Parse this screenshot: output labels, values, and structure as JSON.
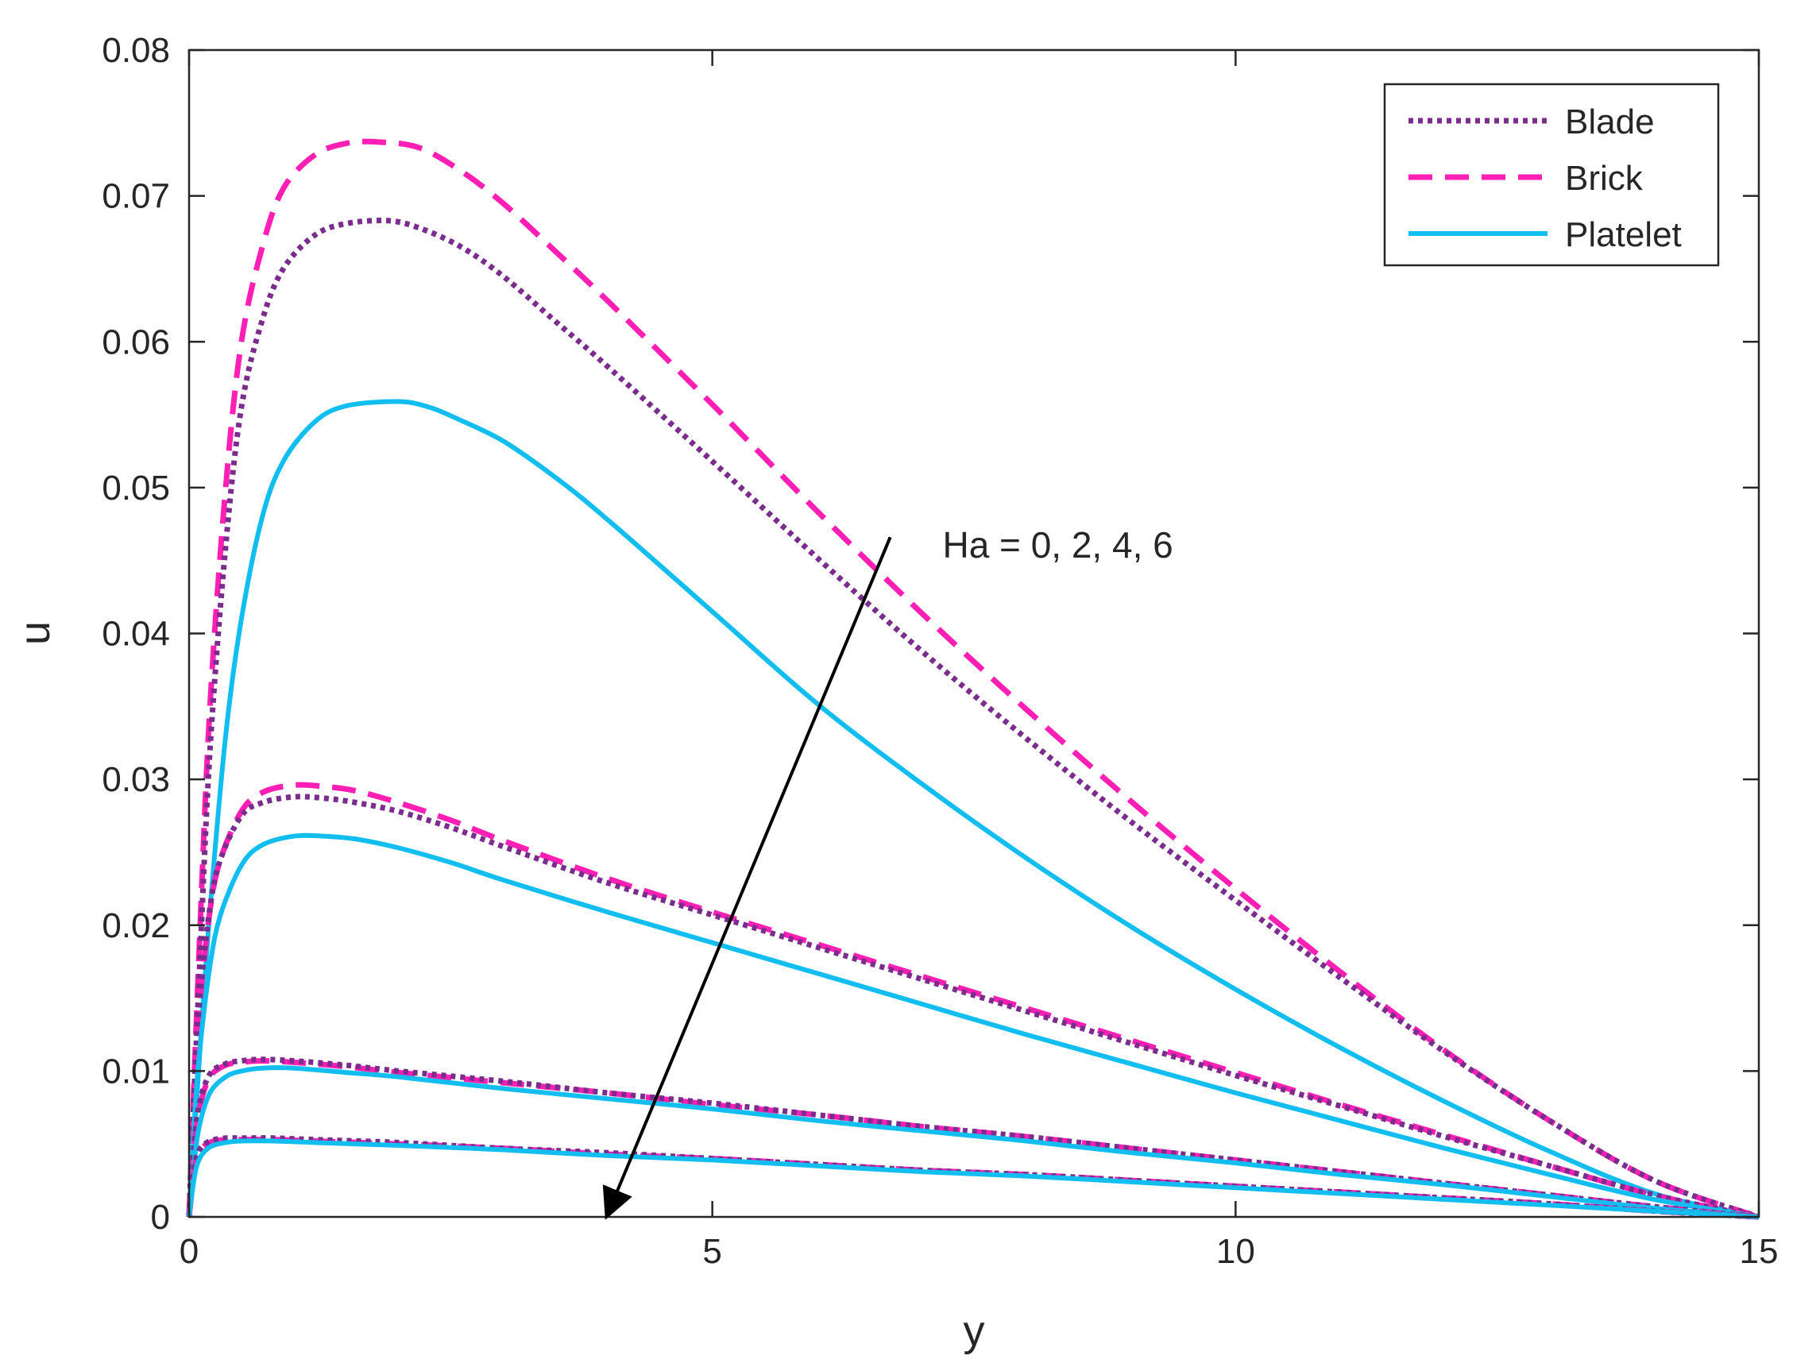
{
  "chart_data": {
    "type": "line",
    "title": "",
    "xlabel": "y",
    "ylabel": "u",
    "xlim": [
      0,
      15
    ],
    "ylim": [
      0,
      0.08
    ],
    "xticks": [
      0,
      5,
      10,
      15
    ],
    "xtick_labels": [
      "0",
      "5",
      "10",
      "15"
    ],
    "yticks": [
      0,
      0.01,
      0.02,
      0.03,
      0.04,
      0.05,
      0.06,
      0.07,
      0.08
    ],
    "ytick_labels": [
      "0",
      "0.01",
      "0.02",
      "0.03",
      "0.04",
      "0.05",
      "0.06",
      "0.07",
      "0.08"
    ],
    "grid": false,
    "legend": {
      "position": "top-right",
      "entries": [
        {
          "name": "Blade",
          "color": "#7B2D8E",
          "style": "dotted"
        },
        {
          "name": "Brick",
          "color": "#FF1FB4",
          "style": "dashed"
        },
        {
          "name": "Platelet",
          "color": "#12BDEF",
          "style": "solid"
        }
      ]
    },
    "annotation": {
      "text": "Ha = 0, 2, 4, 6",
      "arrow_from": [
        6.7,
        0.0466
      ],
      "arrow_to": [
        4.0,
        0.0002
      ]
    },
    "series": [
      {
        "name": "Brick",
        "group": "Ha = 0",
        "color": "#FF1FB4",
        "style": "dashed",
        "peak_x": 1.8,
        "peak_y": 0.0737,
        "x": [
          0,
          0.1,
          0.2,
          0.35,
          0.5,
          0.7,
          0.9,
          1.2,
          1.5,
          1.8,
          2.2,
          2.6,
          3,
          3.5,
          4,
          5,
          6,
          7,
          8,
          9,
          10,
          11,
          12,
          13,
          14,
          15
        ],
        "y": [
          0,
          0.019,
          0.035,
          0.05,
          0.06,
          0.0665,
          0.0705,
          0.0728,
          0.0736,
          0.0737,
          0.0733,
          0.0717,
          0.0695,
          0.0662,
          0.0628,
          0.0557,
          0.0484,
          0.0414,
          0.0348,
          0.0285,
          0.0225,
          0.0168,
          0.0114,
          0.0066,
          0.0025,
          0
        ]
      },
      {
        "name": "Blade",
        "group": "Ha = 0",
        "color": "#7B2D8E",
        "style": "dotted",
        "peak_x": 1.9,
        "peak_y": 0.0683,
        "x": [
          0,
          0.1,
          0.2,
          0.35,
          0.5,
          0.7,
          0.9,
          1.2,
          1.5,
          1.9,
          2.2,
          2.6,
          3,
          3.5,
          4,
          5,
          6,
          7,
          8,
          9,
          10,
          11,
          12,
          13,
          14,
          15
        ],
        "y": [
          0,
          0.017,
          0.032,
          0.046,
          0.0555,
          0.0615,
          0.065,
          0.0673,
          0.0681,
          0.0683,
          0.0678,
          0.0665,
          0.0645,
          0.0614,
          0.0583,
          0.0518,
          0.0452,
          0.0388,
          0.0328,
          0.0271,
          0.0217,
          0.0164,
          0.0113,
          0.0066,
          0.0025,
          0
        ]
      },
      {
        "name": "Platelet",
        "group": "Ha = 0",
        "color": "#12BDEF",
        "style": "solid",
        "peak_x": 2.0,
        "peak_y": 0.0559,
        "x": [
          0,
          0.1,
          0.2,
          0.35,
          0.5,
          0.7,
          0.9,
          1.2,
          1.5,
          2.0,
          2.3,
          2.6,
          3,
          3.5,
          4,
          5,
          6,
          7,
          8,
          9,
          10,
          11,
          12,
          13,
          14,
          15
        ],
        "y": [
          0,
          0.011,
          0.021,
          0.033,
          0.041,
          0.048,
          0.0518,
          0.0545,
          0.0556,
          0.0559,
          0.0555,
          0.0546,
          0.0532,
          0.0507,
          0.0478,
          0.0415,
          0.0352,
          0.0297,
          0.0246,
          0.0199,
          0.0156,
          0.0116,
          0.0079,
          0.0045,
          0.0016,
          0
        ]
      },
      {
        "name": "Brick",
        "group": "Ha = 2",
        "color": "#FF1FB4",
        "style": "dashed",
        "x": [
          0,
          0.05,
          0.1,
          0.2,
          0.3,
          0.5,
          0.7,
          1.0,
          1.3,
          1.6,
          2,
          2.5,
          3,
          4,
          5,
          6,
          7,
          8,
          9,
          10,
          11,
          12,
          13,
          14,
          15
        ],
        "y": [
          0,
          0.0085,
          0.0145,
          0.021,
          0.0245,
          0.0278,
          0.0291,
          0.0296,
          0.0295,
          0.0292,
          0.0284,
          0.0272,
          0.0258,
          0.0232,
          0.0209,
          0.0187,
          0.0165,
          0.0143,
          0.0121,
          0.0099,
          0.0077,
          0.0056,
          0.0035,
          0.0015,
          0
        ]
      },
      {
        "name": "Blade",
        "group": "Ha = 2",
        "color": "#7B2D8E",
        "style": "dotted",
        "x": [
          0,
          0.05,
          0.1,
          0.2,
          0.3,
          0.5,
          0.7,
          1.0,
          1.3,
          1.6,
          2,
          2.5,
          3,
          4,
          5,
          6,
          7,
          8,
          9,
          10,
          11,
          12,
          13,
          14,
          15
        ],
        "y": [
          0,
          0.0088,
          0.0148,
          0.0212,
          0.0245,
          0.0275,
          0.0284,
          0.0288,
          0.0287,
          0.0284,
          0.0278,
          0.0267,
          0.0254,
          0.0229,
          0.0207,
          0.0185,
          0.0163,
          0.0141,
          0.0119,
          0.0097,
          0.0076,
          0.0055,
          0.0035,
          0.0015,
          0
        ]
      },
      {
        "name": "Platelet",
        "group": "Ha = 2",
        "color": "#12BDEF",
        "style": "solid",
        "x": [
          0,
          0.05,
          0.1,
          0.2,
          0.3,
          0.5,
          0.7,
          1.0,
          1.3,
          1.6,
          2,
          2.5,
          3,
          4,
          5,
          6,
          7,
          8,
          9,
          10,
          11,
          12,
          13,
          14,
          15
        ],
        "y": [
          0,
          0.0065,
          0.0113,
          0.0172,
          0.0207,
          0.0241,
          0.0255,
          0.0261,
          0.0261,
          0.0259,
          0.0253,
          0.0243,
          0.0231,
          0.0209,
          0.0188,
          0.0167,
          0.0146,
          0.0125,
          0.0105,
          0.0085,
          0.0066,
          0.0047,
          0.0029,
          0.0012,
          0
        ]
      },
      {
        "name": "Brick",
        "group": "Ha = 4",
        "color": "#FF1FB4",
        "style": "dashed",
        "x": [
          0,
          0.05,
          0.1,
          0.2,
          0.35,
          0.5,
          0.7,
          1.0,
          1.5,
          2,
          3,
          4,
          5,
          6,
          7,
          8,
          9,
          10,
          11,
          12,
          13,
          14,
          15
        ],
        "y": [
          0,
          0.0048,
          0.0075,
          0.0096,
          0.0104,
          0.0106,
          0.0107,
          0.0106,
          0.0103,
          0.0099,
          0.0092,
          0.0085,
          0.0077,
          0.007,
          0.0062,
          0.0055,
          0.0047,
          0.0039,
          0.0031,
          0.0023,
          0.0015,
          0.0007,
          0
        ]
      },
      {
        "name": "Blade",
        "group": "Ha = 4",
        "color": "#7B2D8E",
        "style": "dotted",
        "x": [
          0,
          0.05,
          0.1,
          0.2,
          0.35,
          0.5,
          0.7,
          1.0,
          1.5,
          2,
          3,
          4,
          5,
          6,
          7,
          8,
          9,
          10,
          11,
          12,
          13,
          14,
          15
        ],
        "y": [
          0,
          0.005,
          0.0078,
          0.0098,
          0.0105,
          0.0107,
          0.0108,
          0.0107,
          0.0104,
          0.01,
          0.0093,
          0.0085,
          0.0078,
          0.007,
          0.0062,
          0.0055,
          0.0047,
          0.0039,
          0.0031,
          0.0023,
          0.0015,
          0.0007,
          0
        ]
      },
      {
        "name": "Platelet",
        "group": "Ha = 4",
        "color": "#12BDEF",
        "style": "solid",
        "x": [
          0,
          0.05,
          0.1,
          0.2,
          0.35,
          0.5,
          0.7,
          1.0,
          1.5,
          2,
          3,
          4,
          5,
          6,
          7,
          8,
          9,
          10,
          11,
          12,
          13,
          14,
          15
        ],
        "y": [
          0,
          0.0038,
          0.0063,
          0.0085,
          0.0096,
          0.01,
          0.0102,
          0.0102,
          0.0099,
          0.0096,
          0.0088,
          0.0081,
          0.0074,
          0.0066,
          0.0059,
          0.0052,
          0.0044,
          0.0037,
          0.0029,
          0.0022,
          0.0014,
          0.0006,
          0
        ]
      },
      {
        "name": "Brick",
        "group": "Ha = 6",
        "color": "#FF1FB4",
        "style": "dashed",
        "x": [
          0,
          0.05,
          0.1,
          0.2,
          0.35,
          0.5,
          0.8,
          1.2,
          2,
          3,
          4,
          5,
          6,
          7,
          8,
          9,
          10,
          11,
          12,
          13,
          14,
          15
        ],
        "y": [
          0,
          0.0032,
          0.0045,
          0.0051,
          0.0053,
          0.0053,
          0.0053,
          0.0052,
          0.005,
          0.0047,
          0.0043,
          0.004,
          0.0036,
          0.0032,
          0.0029,
          0.0025,
          0.0021,
          0.0017,
          0.0013,
          0.0009,
          0.0004,
          0
        ]
      },
      {
        "name": "Blade",
        "group": "Ha = 6",
        "color": "#7B2D8E",
        "style": "dotted",
        "x": [
          0,
          0.05,
          0.1,
          0.2,
          0.35,
          0.5,
          0.8,
          1.2,
          2,
          3,
          4,
          5,
          6,
          7,
          8,
          9,
          10,
          11,
          12,
          13,
          14,
          15
        ],
        "y": [
          0,
          0.0033,
          0.0046,
          0.0052,
          0.0054,
          0.0054,
          0.0054,
          0.0053,
          0.0051,
          0.0047,
          0.0044,
          0.004,
          0.0036,
          0.0032,
          0.0029,
          0.0025,
          0.0021,
          0.0017,
          0.0013,
          0.0009,
          0.0004,
          0
        ]
      },
      {
        "name": "Platelet",
        "group": "Ha = 6",
        "color": "#12BDEF",
        "style": "solid",
        "x": [
          0,
          0.05,
          0.1,
          0.2,
          0.35,
          0.5,
          0.8,
          1.2,
          2,
          3,
          4,
          5,
          6,
          7,
          8,
          9,
          10,
          11,
          12,
          13,
          14,
          15
        ],
        "y": [
          0,
          0.0027,
          0.004,
          0.0048,
          0.0051,
          0.0052,
          0.0052,
          0.0051,
          0.0049,
          0.0046,
          0.0042,
          0.0039,
          0.0035,
          0.0031,
          0.0028,
          0.0024,
          0.002,
          0.0016,
          0.0012,
          0.0008,
          0.0004,
          0
        ]
      }
    ]
  }
}
